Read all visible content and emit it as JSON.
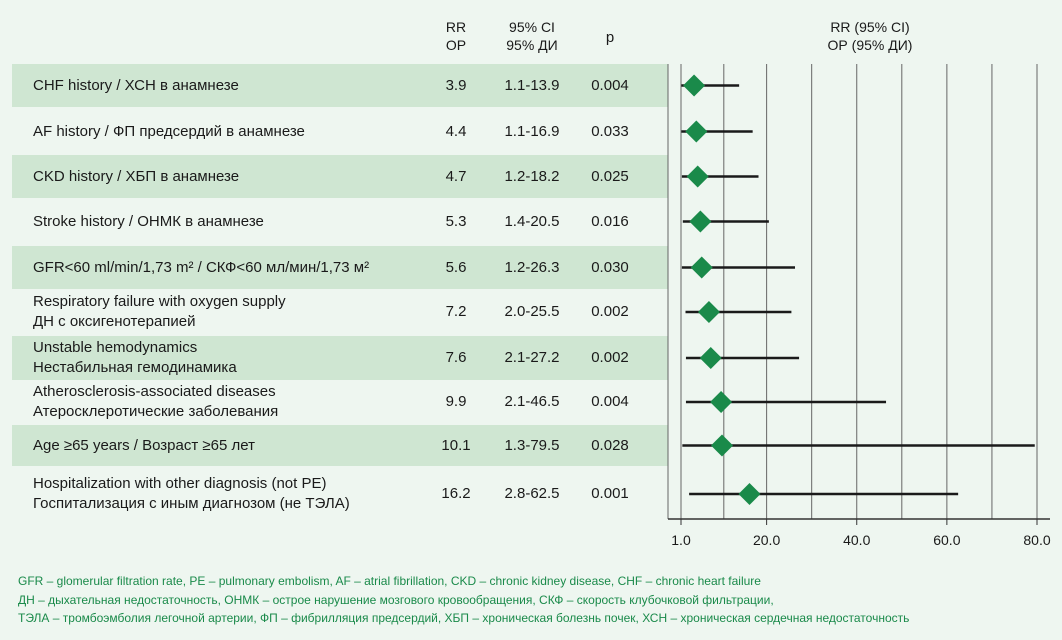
{
  "header": {
    "rr_en": "RR",
    "rr_ru": "ОР",
    "ci_en": "95% CI",
    "ci_ru": "95% ДИ",
    "p": "p",
    "plot_title_en": "RR (95% CI)",
    "plot_title_ru": "ОР (95% ДИ)"
  },
  "colors": {
    "band": "#cfe6d2",
    "background": "#eef6f0",
    "marker": "#1a8a4a",
    "footnote": "#1a8a4a"
  },
  "chart_data": {
    "type": "forest",
    "xlim": [
      1.0,
      80.0
    ],
    "xticks": [
      1.0,
      20.0,
      40.0,
      60.0,
      80.0
    ],
    "xtick_labels": [
      "1.0",
      "20.0",
      "40.0",
      "60.0",
      "80.0"
    ],
    "rows": [
      {
        "lines": [
          "CHF history / ХСН в анамнезе"
        ],
        "rr": 3.9,
        "ci_low": 1.1,
        "ci_high": 13.9,
        "rr_text": "3.9",
        "ci_text": "1.1-13.9",
        "p_text": "0.004",
        "shaded": true
      },
      {
        "lines": [
          "AF history / ФП предсердий в анамнезе"
        ],
        "rr": 4.4,
        "ci_low": 1.1,
        "ci_high": 16.9,
        "rr_text": "4.4",
        "ci_text": "1.1-16.9",
        "p_text": "0.033",
        "shaded": false
      },
      {
        "lines": [
          "CKD history  / ХБП в анамнезе"
        ],
        "rr": 4.7,
        "ci_low": 1.2,
        "ci_high": 18.2,
        "rr_text": "4.7",
        "ci_text": "1.2-18.2",
        "p_text": "0.025",
        "shaded": true
      },
      {
        "lines": [
          "Stroke history / ОНМК в анамнезе"
        ],
        "rr": 5.3,
        "ci_low": 1.4,
        "ci_high": 20.5,
        "rr_text": "5.3",
        "ci_text": "1.4-20.5",
        "p_text": "0.016",
        "shaded": false
      },
      {
        "lines": [
          "GFR<60 ml/min/1,73 m² / СКФ<60 мл/мин/1,73 м²"
        ],
        "rr": 5.6,
        "ci_low": 1.2,
        "ci_high": 26.3,
        "rr_text": "5.6",
        "ci_text": "1.2-26.3",
        "p_text": "0.030",
        "shaded": true
      },
      {
        "lines": [
          "Respiratory failure with oxygen supply",
          "ДН с оксигенотерапией"
        ],
        "rr": 7.2,
        "ci_low": 2.0,
        "ci_high": 25.5,
        "rr_text": "7.2",
        "ci_text": "2.0-25.5",
        "p_text": "0.002",
        "shaded": false
      },
      {
        "lines": [
          "Unstable hemodynamics",
          "Нестабильная гемодинамика"
        ],
        "rr": 7.6,
        "ci_low": 2.1,
        "ci_high": 27.2,
        "rr_text": "7.6",
        "ci_text": "2.1-27.2",
        "p_text": "0.002",
        "shaded": true
      },
      {
        "lines": [
          "Atherosclerosis-associated diseases",
          "Атеросклеротические заболевания"
        ],
        "rr": 9.9,
        "ci_low": 2.1,
        "ci_high": 46.5,
        "rr_text": "9.9",
        "ci_text": "2.1-46.5",
        "p_text": "0.004",
        "shaded": false
      },
      {
        "lines": [
          "Age ≥65 years / Возраст ≥65 лет"
        ],
        "rr": 10.1,
        "ci_low": 1.3,
        "ci_high": 79.5,
        "rr_text": "10.1",
        "ci_text": "1.3-79.5",
        "p_text": "0.028",
        "shaded": true
      },
      {
        "lines": [
          "Hospitalization with other diagnosis (not PE)",
          "Госпитализация с иным диагнозом (не ТЭЛА)"
        ],
        "rr": 16.2,
        "ci_low": 2.8,
        "ci_high": 62.5,
        "rr_text": "16.2",
        "ci_text": "2.8-62.5",
        "p_text": "0.001",
        "shaded": false
      }
    ]
  },
  "footnotes": [
    "GFR – glomerular filtration rate, PE – pulmonary embolism, AF – atrial fibrillation, CKD – chronic kidney disease, CHF – chronic heart failure",
    "ДН – дыхательная недостаточность, ОНМК – острое нарушение мозгового кровообращения, СКФ – скорость клубочковой фильтрации,",
    "ТЭЛА – тромбоэмболия легочной артерии, ФП – фибрилляция предсердий, ХБП – хроническая болезнь почек, ХСН – хроническая сердечная недостаточность"
  ]
}
